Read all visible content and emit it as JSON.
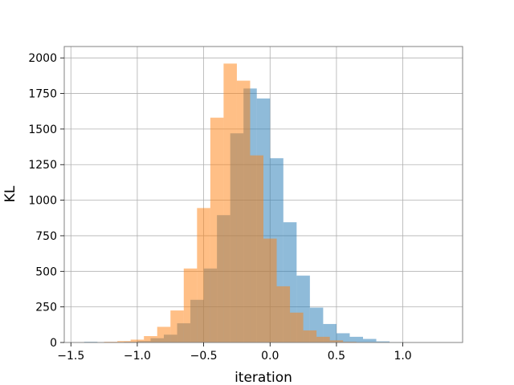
{
  "chart_data": {
    "type": "bar",
    "title": "",
    "xlabel": "iteration",
    "ylabel": "KL",
    "xlim": [
      -1.55,
      1.45
    ],
    "ylim": [
      0,
      2080
    ],
    "grid": true,
    "legend": "none",
    "xticks": [
      -1.5,
      -1.0,
      -0.5,
      0.0,
      0.5,
      1.0
    ],
    "xtick_labels": [
      "−1.5",
      "−1.0",
      "−0.5",
      "0.0",
      "0.5",
      "1.0"
    ],
    "yticks": [
      0,
      250,
      500,
      750,
      1000,
      1250,
      1500,
      1750,
      2000
    ],
    "ytick_labels": [
      "0",
      "250",
      "500",
      "750",
      "1000",
      "1250",
      "1500",
      "1750",
      "2000"
    ],
    "series": [
      {
        "color": "#1f77b4",
        "alpha": 0.5,
        "bins": [
          [
            -1.4,
            -1.3,
            5
          ],
          [
            -1.3,
            -1.2,
            2
          ],
          [
            -1.2,
            -1.1,
            3
          ],
          [
            -1.1,
            -1.0,
            5
          ],
          [
            -1.0,
            -0.9,
            10
          ],
          [
            -0.9,
            -0.8,
            30
          ],
          [
            -0.8,
            -0.7,
            55
          ],
          [
            -0.7,
            -0.6,
            135
          ],
          [
            -0.6,
            -0.5,
            300
          ],
          [
            -0.5,
            -0.4,
            520
          ],
          [
            -0.4,
            -0.3,
            895
          ],
          [
            -0.3,
            -0.2,
            1470
          ],
          [
            -0.2,
            -0.1,
            1785
          ],
          [
            -0.1,
            0.0,
            1715
          ],
          [
            0.0,
            0.1,
            1295
          ],
          [
            0.1,
            0.2,
            845
          ],
          [
            0.2,
            0.3,
            470
          ],
          [
            0.3,
            0.4,
            245
          ],
          [
            0.4,
            0.5,
            130
          ],
          [
            0.5,
            0.6,
            65
          ],
          [
            0.6,
            0.7,
            40
          ],
          [
            0.7,
            0.8,
            25
          ],
          [
            0.8,
            0.9,
            8
          ],
          [
            0.9,
            1.0,
            3
          ],
          [
            1.0,
            1.1,
            2
          ]
        ]
      },
      {
        "color": "#ff7f0e",
        "alpha": 0.5,
        "bins": [
          [
            -1.25,
            -1.15,
            5
          ],
          [
            -1.15,
            -1.05,
            10
          ],
          [
            -1.05,
            -0.95,
            20
          ],
          [
            -0.95,
            -0.85,
            45
          ],
          [
            -0.85,
            -0.75,
            110
          ],
          [
            -0.75,
            -0.65,
            225
          ],
          [
            -0.65,
            -0.55,
            520
          ],
          [
            -0.55,
            -0.45,
            945
          ],
          [
            -0.45,
            -0.35,
            1580
          ],
          [
            -0.35,
            -0.25,
            1960
          ],
          [
            -0.25,
            -0.15,
            1840
          ],
          [
            -0.15,
            -0.05,
            1315
          ],
          [
            -0.05,
            0.05,
            730
          ],
          [
            0.05,
            0.15,
            395
          ],
          [
            0.15,
            0.25,
            210
          ],
          [
            0.25,
            0.35,
            85
          ],
          [
            0.35,
            0.45,
            40
          ],
          [
            0.45,
            0.55,
            15
          ],
          [
            0.55,
            0.65,
            5
          ],
          [
            0.65,
            0.75,
            2
          ]
        ]
      }
    ]
  }
}
